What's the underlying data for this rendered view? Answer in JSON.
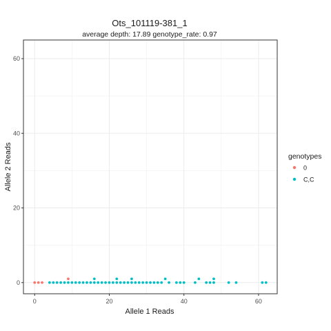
{
  "chart_data": {
    "type": "scatter",
    "title": "Ots_101119-381_1",
    "subtitle": "average depth:  17.89  genotype_rate:  0.97",
    "xlabel": "Allele 1 Reads",
    "ylabel": "Allele 2 Reads",
    "xlim": [
      -3,
      65
    ],
    "ylim": [
      -3,
      65
    ],
    "x_ticks": [
      0,
      20,
      40,
      60
    ],
    "y_ticks": [
      0,
      20,
      40,
      60
    ],
    "x_tick_labels": [
      "0",
      "20",
      "40",
      "60"
    ],
    "y_tick_labels": [
      "0",
      "20",
      "40",
      "60"
    ],
    "grid": true,
    "legend": {
      "title": "genotypes",
      "position": "right"
    },
    "series": [
      {
        "name": "0",
        "color": "#F8766D",
        "points": [
          {
            "x": 0,
            "y": 0
          },
          {
            "x": 1,
            "y": 0
          },
          {
            "x": 2,
            "y": 0
          },
          {
            "x": 9,
            "y": 1
          }
        ]
      },
      {
        "name": "C,C",
        "color": "#00BFC4",
        "points": [
          {
            "x": 4,
            "y": 0
          },
          {
            "x": 5,
            "y": 0
          },
          {
            "x": 6,
            "y": 0
          },
          {
            "x": 7,
            "y": 0
          },
          {
            "x": 8,
            "y": 0
          },
          {
            "x": 9,
            "y": 0
          },
          {
            "x": 10,
            "y": 0
          },
          {
            "x": 11,
            "y": 0
          },
          {
            "x": 12,
            "y": 0
          },
          {
            "x": 13,
            "y": 0
          },
          {
            "x": 14,
            "y": 0
          },
          {
            "x": 15,
            "y": 0
          },
          {
            "x": 16,
            "y": 0
          },
          {
            "x": 16,
            "y": 1
          },
          {
            "x": 17,
            "y": 0
          },
          {
            "x": 18,
            "y": 0
          },
          {
            "x": 19,
            "y": 0
          },
          {
            "x": 20,
            "y": 0
          },
          {
            "x": 21,
            "y": 0
          },
          {
            "x": 22,
            "y": 0
          },
          {
            "x": 22,
            "y": 1
          },
          {
            "x": 23,
            "y": 0
          },
          {
            "x": 24,
            "y": 0
          },
          {
            "x": 25,
            "y": 0
          },
          {
            "x": 26,
            "y": 0
          },
          {
            "x": 26,
            "y": 1
          },
          {
            "x": 27,
            "y": 0
          },
          {
            "x": 28,
            "y": 0
          },
          {
            "x": 29,
            "y": 0
          },
          {
            "x": 30,
            "y": 0
          },
          {
            "x": 31,
            "y": 0
          },
          {
            "x": 32,
            "y": 0
          },
          {
            "x": 33,
            "y": 0
          },
          {
            "x": 34,
            "y": 0
          },
          {
            "x": 35,
            "y": 1
          },
          {
            "x": 36,
            "y": 0
          },
          {
            "x": 38,
            "y": 0
          },
          {
            "x": 39,
            "y": 0
          },
          {
            "x": 40,
            "y": 0
          },
          {
            "x": 43,
            "y": 0
          },
          {
            "x": 44,
            "y": 1
          },
          {
            "x": 46,
            "y": 0
          },
          {
            "x": 47,
            "y": 0
          },
          {
            "x": 48,
            "y": 1
          },
          {
            "x": 48,
            "y": 0
          },
          {
            "x": 52,
            "y": 0
          },
          {
            "x": 54,
            "y": 0
          },
          {
            "x": 61,
            "y": 0
          },
          {
            "x": 62,
            "y": 0
          }
        ]
      }
    ]
  }
}
